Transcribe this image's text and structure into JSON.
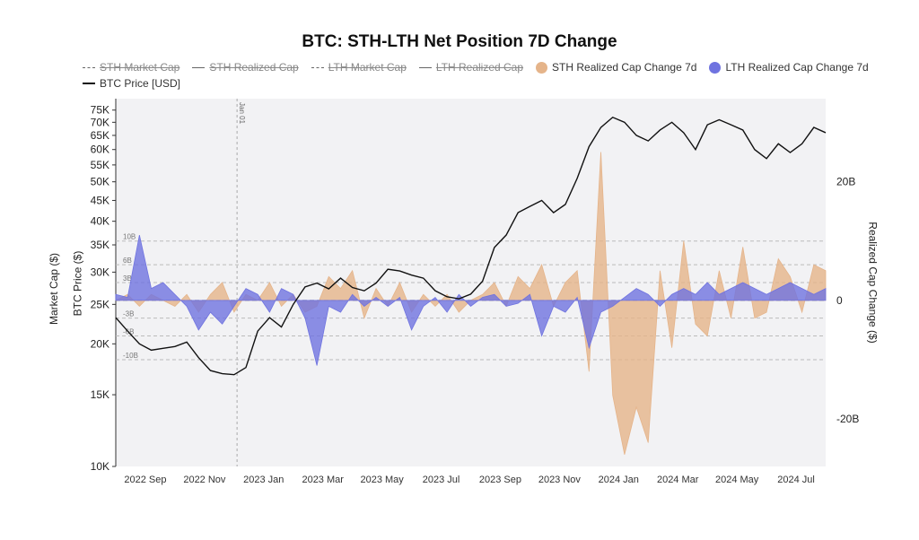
{
  "title": "BTC: STH-LTH Net Position 7D Change",
  "legend": [
    {
      "label": "STH Market Cap",
      "style": "dash",
      "active": false
    },
    {
      "label": "STH Realized Cap",
      "style": "line",
      "active": false
    },
    {
      "label": "LTH Market Cap",
      "style": "dash",
      "active": false
    },
    {
      "label": "LTH Realized Cap",
      "style": "line",
      "active": false
    },
    {
      "label": "STH Realized Cap Change 7d",
      "style": "dot",
      "color": "#e5b48a",
      "active": true
    },
    {
      "label": "LTH Realized Cap Change 7d",
      "style": "dot",
      "color": "#6f73e0",
      "active": true
    },
    {
      "label": "BTC Price [USD]",
      "style": "black",
      "active": true
    }
  ],
  "axes": {
    "left_title_outer": "Market Cap ($)",
    "left_title_inner": "BTC Price ($)",
    "right_title": "Realized Cap Change ($)"
  },
  "chart_data": {
    "type": "line",
    "x_ticks": [
      "2022 Sep",
      "2022 Nov",
      "2023 Jan",
      "2023 Mar",
      "2023 May",
      "2023 Jul",
      "2023 Sep",
      "2023 Nov",
      "2024 Jan",
      "2024 Mar",
      "2024 May",
      "2024 Jul"
    ],
    "x_range": [
      0,
      24
    ],
    "vline": {
      "label": "Jan 01",
      "x": 4.1
    },
    "left_axis": {
      "scale": "log",
      "range": [
        10000,
        80000
      ],
      "ticks": [
        "10K",
        "15K",
        "20K",
        "25K",
        "30K",
        "35K",
        "40K",
        "45K",
        "50K",
        "55K",
        "60K",
        "65K",
        "70K",
        "75K"
      ],
      "tick_values": [
        10000,
        15000,
        20000,
        25000,
        30000,
        35000,
        40000,
        45000,
        50000,
        55000,
        60000,
        65000,
        70000,
        75000
      ]
    },
    "right_axis": {
      "range": [
        -28,
        34
      ],
      "ticks": [
        "20B",
        "0",
        "-20B"
      ],
      "tick_values": [
        20,
        0,
        -20
      ]
    },
    "inner_ref_lines": {
      "labels": [
        "10B",
        "6B",
        "3B",
        "-3B",
        "-6B",
        "-10B"
      ],
      "values": [
        10,
        6,
        3,
        -3,
        -6,
        -10
      ]
    },
    "series": [
      {
        "name": "BTC Price [USD]",
        "color": "#111111",
        "axis": "left",
        "x": [
          0,
          0.4,
          0.8,
          1.2,
          1.6,
          2,
          2.4,
          2.8,
          3.2,
          3.6,
          4,
          4.4,
          4.8,
          5.2,
          5.6,
          6,
          6.4,
          6.8,
          7.2,
          7.6,
          8,
          8.4,
          8.8,
          9.2,
          9.6,
          10,
          10.4,
          10.8,
          11.2,
          11.6,
          12,
          12.4,
          12.8,
          13.2,
          13.6,
          14,
          14.4,
          14.8,
          15.2,
          15.6,
          16,
          16.4,
          16.8,
          17.2,
          17.6,
          18,
          18.4,
          18.8,
          19.2,
          19.6,
          20,
          20.4,
          20.8,
          21.2,
          21.6,
          22,
          22.4,
          22.8,
          23.2,
          23.6,
          24
        ],
        "y": [
          23200,
          21500,
          20000,
          19300,
          19500,
          19700,
          20200,
          18500,
          17200,
          16900,
          16800,
          17500,
          21500,
          23200,
          22000,
          25000,
          27600,
          28200,
          27300,
          29000,
          27500,
          27000,
          28200,
          30500,
          30200,
          29500,
          29000,
          27000,
          26100,
          25800,
          26500,
          28500,
          34500,
          37000,
          42000,
          43500,
          45000,
          42000,
          44000,
          51000,
          61000,
          68000,
          72000,
          70000,
          65000,
          63000,
          67000,
          70000,
          66000,
          60000,
          69000,
          71000,
          69000,
          67000,
          60000,
          57000,
          62000,
          59000,
          62000,
          68000,
          66000
        ]
      },
      {
        "name": "STH Realized Cap Change 7d",
        "color": "#e5b48a",
        "axis": "right",
        "x": [
          0,
          0.4,
          0.8,
          1.2,
          1.6,
          2,
          2.4,
          2.8,
          3.2,
          3.6,
          4,
          4.4,
          4.8,
          5.2,
          5.6,
          6,
          6.4,
          6.8,
          7.2,
          7.6,
          8,
          8.4,
          8.8,
          9.2,
          9.6,
          10,
          10.4,
          10.8,
          11.2,
          11.6,
          12,
          12.4,
          12.8,
          13.2,
          13.6,
          14,
          14.4,
          14.8,
          15.2,
          15.6,
          16,
          16.4,
          16.8,
          17.2,
          17.6,
          18,
          18.4,
          18.8,
          19.2,
          19.6,
          20,
          20.4,
          20.8,
          21.2,
          21.6,
          22,
          22.4,
          22.8,
          23.2,
          23.6,
          24
        ],
        "y": [
          0,
          1,
          -1,
          1,
          0,
          -1,
          1,
          -2,
          1,
          3,
          -2,
          1,
          0,
          3,
          -1,
          1,
          -2,
          -1,
          4,
          2,
          5,
          -3,
          2,
          -1,
          3,
          -2,
          1,
          -1,
          1,
          -2,
          0,
          1,
          3,
          -1,
          4,
          2,
          6,
          -1,
          3,
          5,
          -12,
          25,
          -16,
          -26,
          -18,
          -24,
          5,
          -8,
          10,
          -4,
          -6,
          5,
          -3,
          9,
          -3,
          -2,
          7,
          4,
          -2,
          6,
          5
        ]
      },
      {
        "name": "LTH Realized Cap Change 7d",
        "color": "#6f73e0",
        "axis": "right",
        "x": [
          0,
          0.4,
          0.8,
          1.2,
          1.6,
          2,
          2.4,
          2.8,
          3.2,
          3.6,
          4,
          4.4,
          4.8,
          5.2,
          5.6,
          6,
          6.4,
          6.8,
          7.2,
          7.6,
          8,
          8.4,
          8.8,
          9.2,
          9.6,
          10,
          10.4,
          10.8,
          11.2,
          11.6,
          12,
          12.4,
          12.8,
          13.2,
          13.6,
          14,
          14.4,
          14.8,
          15.2,
          15.6,
          16,
          16.4,
          16.8,
          17.2,
          17.6,
          18,
          18.4,
          18.8,
          19.2,
          19.6,
          20,
          20.4,
          20.8,
          21.2,
          21.6,
          22,
          22.4,
          22.8,
          23.2,
          23.6,
          24
        ],
        "y": [
          1,
          0.5,
          11,
          2,
          3,
          1,
          -1,
          -5,
          -2,
          -4,
          -1,
          2,
          1,
          -2,
          2,
          1,
          -3,
          -11,
          -1,
          -2,
          1,
          -1,
          0.5,
          -1,
          0.5,
          -5,
          -1,
          0.5,
          -2,
          1,
          -1,
          0.5,
          1,
          -1,
          -0.5,
          1,
          -6,
          -1,
          -2,
          0.5,
          -8,
          -2,
          -1,
          0.5,
          2,
          1,
          -1,
          1,
          2,
          1,
          3,
          1,
          2,
          3,
          2,
          1,
          2,
          3,
          2,
          1,
          2
        ]
      }
    ]
  }
}
